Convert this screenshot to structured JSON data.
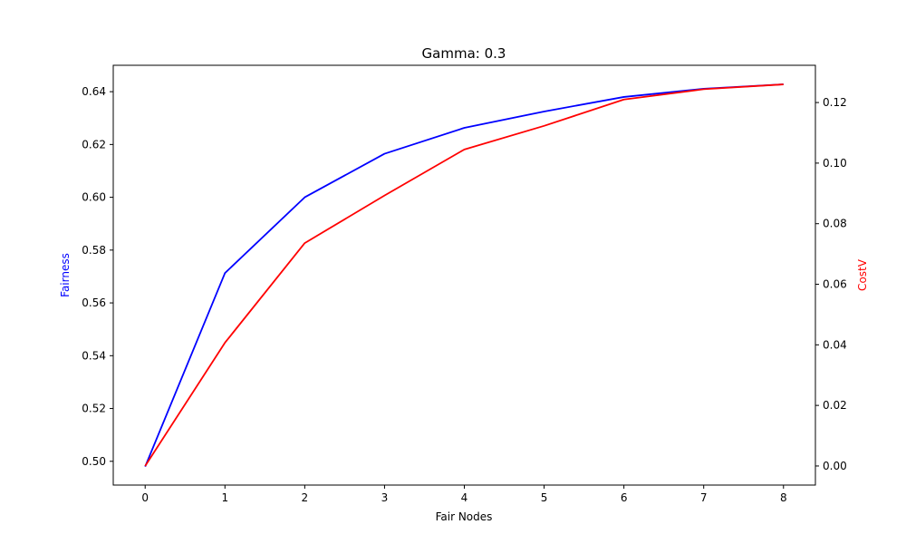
{
  "chart_data": {
    "type": "line",
    "title": "Gamma: 0.3",
    "xlabel": "Fair Nodes",
    "ylabel_left": "Fairness",
    "ylabel_right": "CostV",
    "x": [
      0,
      1,
      2,
      3,
      4,
      5,
      6,
      7,
      8
    ],
    "xlim": [
      -0.4,
      8.4
    ],
    "ylim_left": [
      0.491,
      0.65
    ],
    "ylim_right": [
      -0.0063,
      0.1323
    ],
    "x_ticks": [
      "0",
      "1",
      "2",
      "3",
      "4",
      "5",
      "6",
      "7",
      "8"
    ],
    "y_ticks_left": [
      "0.50",
      "0.52",
      "0.54",
      "0.56",
      "0.58",
      "0.60",
      "0.62",
      "0.64"
    ],
    "y_ticks_right": [
      "0.00",
      "0.02",
      "0.04",
      "0.06",
      "0.08",
      "0.10",
      "0.12"
    ],
    "grid": false,
    "series": [
      {
        "axis": "left",
        "color": "#0000ff",
        "values": [
          0.498,
          0.5713,
          0.6,
          0.6165,
          0.6263,
          0.6325,
          0.638,
          0.6411,
          0.6428
        ]
      },
      {
        "axis": "right",
        "color": "#ff0000",
        "values": [
          0.0,
          0.0407,
          0.0736,
          0.0893,
          0.1045,
          0.1123,
          0.121,
          0.1244,
          0.126
        ]
      }
    ],
    "colors": {
      "left_axis_label": "#0000ff",
      "right_axis_label": "#ff0000"
    }
  }
}
